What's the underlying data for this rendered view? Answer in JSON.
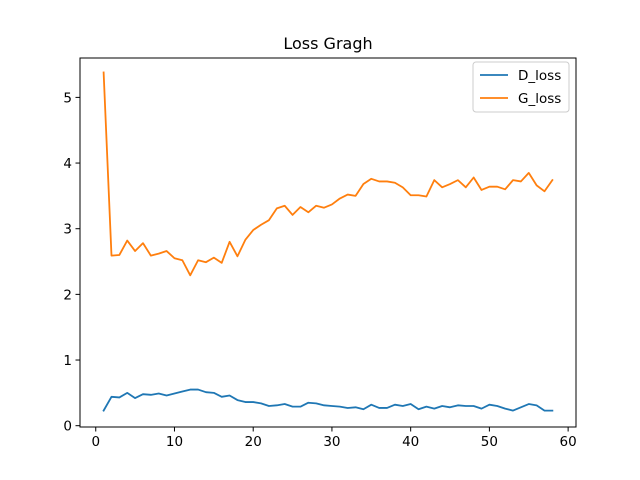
{
  "chart_data": {
    "type": "line",
    "title": "Loss Gragh",
    "xlabel": "",
    "ylabel": "",
    "xlim": [
      -2,
      61
    ],
    "ylim": [
      -0.02,
      5.6
    ],
    "xticks": [
      0,
      10,
      20,
      30,
      40,
      50,
      60
    ],
    "yticks": [
      0,
      1,
      2,
      3,
      4,
      5
    ],
    "legend_position": "top-right",
    "grid": false,
    "x": [
      1,
      2,
      3,
      4,
      5,
      6,
      7,
      8,
      9,
      10,
      11,
      12,
      13,
      14,
      15,
      16,
      17,
      18,
      19,
      20,
      21,
      22,
      23,
      24,
      25,
      26,
      27,
      28,
      29,
      30,
      31,
      32,
      33,
      34,
      35,
      36,
      37,
      38,
      39,
      40,
      41,
      42,
      43,
      44,
      45,
      46,
      47,
      48,
      49,
      50,
      51,
      52,
      53,
      54,
      55,
      56,
      57,
      58
    ],
    "series": [
      {
        "name": "D_loss",
        "color": "#1f77b4",
        "values": [
          0.23,
          0.44,
          0.43,
          0.5,
          0.42,
          0.48,
          0.47,
          0.49,
          0.46,
          0.49,
          0.52,
          0.55,
          0.55,
          0.51,
          0.5,
          0.44,
          0.46,
          0.39,
          0.36,
          0.36,
          0.34,
          0.3,
          0.31,
          0.33,
          0.29,
          0.29,
          0.35,
          0.34,
          0.31,
          0.3,
          0.29,
          0.27,
          0.28,
          0.25,
          0.32,
          0.27,
          0.27,
          0.32,
          0.3,
          0.33,
          0.25,
          0.29,
          0.26,
          0.3,
          0.28,
          0.31,
          0.3,
          0.3,
          0.26,
          0.32,
          0.3,
          0.26,
          0.23,
          0.28,
          0.33,
          0.31,
          0.23,
          0.23
        ]
      },
      {
        "name": "G_loss",
        "color": "#ff7f0e",
        "values": [
          5.38,
          2.59,
          2.6,
          2.82,
          2.66,
          2.78,
          2.59,
          2.62,
          2.66,
          2.55,
          2.52,
          2.29,
          2.52,
          2.49,
          2.56,
          2.48,
          2.8,
          2.58,
          2.83,
          2.98,
          3.06,
          3.13,
          3.31,
          3.35,
          3.21,
          3.33,
          3.25,
          3.35,
          3.32,
          3.37,
          3.46,
          3.52,
          3.5,
          3.68,
          3.76,
          3.72,
          3.72,
          3.7,
          3.63,
          3.51,
          3.51,
          3.49,
          3.74,
          3.63,
          3.68,
          3.74,
          3.63,
          3.78,
          3.59,
          3.64,
          3.64,
          3.6,
          3.74,
          3.72,
          3.85,
          3.66,
          3.57,
          3.74
        ]
      }
    ]
  }
}
